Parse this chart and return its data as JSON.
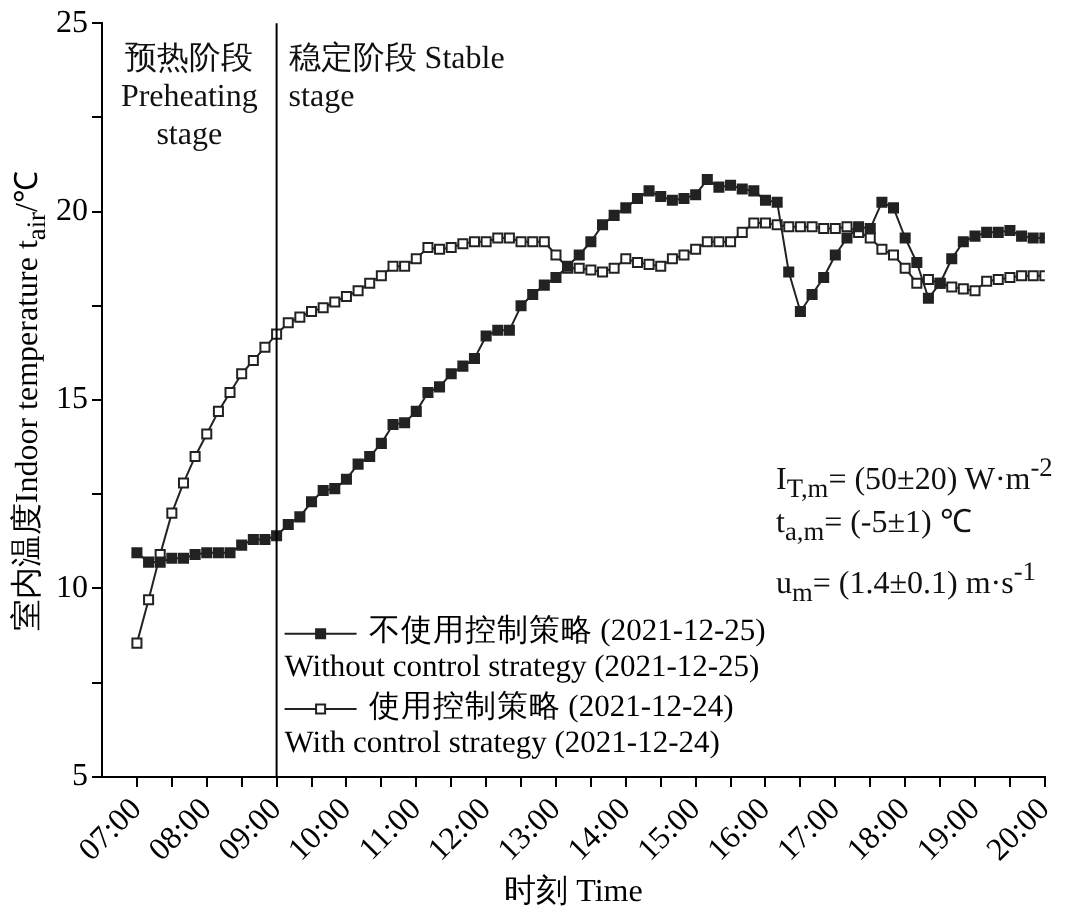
{
  "chart_data": {
    "type": "line",
    "xlabel": "时刻 Time",
    "ylabel": "室内温度Indoor temperature t$_{air}$/℃",
    "x": [
      7,
      7.167,
      7.333,
      7.5,
      7.667,
      7.833,
      8,
      8.167,
      8.333,
      8.5,
      8.667,
      8.833,
      9,
      9.167,
      9.333,
      9.5,
      9.667,
      9.833,
      10,
      10.167,
      10.333,
      10.5,
      10.667,
      10.833,
      11,
      11.167,
      11.333,
      11.5,
      11.667,
      11.833,
      12,
      12.167,
      12.333,
      12.5,
      12.667,
      12.833,
      13,
      13.167,
      13.333,
      13.5,
      13.667,
      13.833,
      14,
      14.167,
      14.333,
      14.5,
      14.667,
      14.833,
      15,
      15.167,
      15.333,
      15.5,
      15.667,
      15.833,
      16,
      16.167,
      16.333,
      16.5,
      16.667,
      16.833,
      17,
      17.167,
      17.333,
      17.5,
      17.667,
      17.833,
      18,
      18.167,
      18.333,
      18.5,
      18.667,
      18.833,
      19,
      19.167,
      19.333,
      19.5,
      19.667,
      19.833,
      20
    ],
    "series": [
      {
        "name": "不使用控制策略 (2021-12-25)\nWithout control strategy (2021-12-25)",
        "color": "#222222",
        "values": [
          10.95,
          10.7,
          10.7,
          10.8,
          10.8,
          10.9,
          10.95,
          10.95,
          10.95,
          11.15,
          11.3,
          11.3,
          11.4,
          11.7,
          11.9,
          12.3,
          12.6,
          12.65,
          12.9,
          13.3,
          13.5,
          13.85,
          14.35,
          14.4,
          14.7,
          15.2,
          15.35,
          15.7,
          15.9,
          16.1,
          16.7,
          16.85,
          16.85,
          17.5,
          17.8,
          18.05,
          18.25,
          18.55,
          18.85,
          19.2,
          19.65,
          19.9,
          20.1,
          20.35,
          20.55,
          20.4,
          20.3,
          20.35,
          20.45,
          20.85,
          20.65,
          20.7,
          20.6,
          20.55,
          20.3,
          20.25,
          18.4,
          17.35,
          17.8,
          18.25,
          18.85,
          19.3,
          19.6,
          19.55,
          20.25,
          20.1,
          19.3,
          18.65,
          17.7,
          18.1,
          18.75,
          19.2,
          19.35,
          19.45,
          19.45,
          19.5,
          19.35,
          19.3,
          19.3
        ]
      },
      {
        "name": "使用控制策略 (2021-12-24)\nWith control strategy (2021-12-24)",
        "color": "#222222",
        "values": [
          8.55,
          9.7,
          10.9,
          12.0,
          12.8,
          13.5,
          14.1,
          14.7,
          15.2,
          15.7,
          16.05,
          16.4,
          16.75,
          17.05,
          17.2,
          17.35,
          17.45,
          17.6,
          17.75,
          17.9,
          18.1,
          18.3,
          18.55,
          18.55,
          18.75,
          19.05,
          19.0,
          19.05,
          19.15,
          19.2,
          19.2,
          19.3,
          19.3,
          19.2,
          19.2,
          19.2,
          18.85,
          18.5,
          18.5,
          18.45,
          18.4,
          18.5,
          18.75,
          18.65,
          18.6,
          18.55,
          18.75,
          18.85,
          19.0,
          19.2,
          19.2,
          19.2,
          19.45,
          19.7,
          19.7,
          19.65,
          19.6,
          19.6,
          19.6,
          19.55,
          19.55,
          19.6,
          19.45,
          19.3,
          19.0,
          18.85,
          18.5,
          18.1,
          18.2,
          18.1,
          18.0,
          17.95,
          17.9,
          18.15,
          18.2,
          18.25,
          18.3,
          18.3,
          18.3
        ]
      }
    ],
    "xlim": [
      6.5,
      20
    ],
    "xticks": [
      {
        "value": 7,
        "label": "07:00"
      },
      {
        "value": 7.5,
        "label": null
      },
      {
        "value": 8,
        "label": "08:00"
      },
      {
        "value": 8.5,
        "label": null
      },
      {
        "value": 9,
        "label": "09:00"
      },
      {
        "value": 9.5,
        "label": null
      },
      {
        "value": 10,
        "label": "10:00"
      },
      {
        "value": 10.5,
        "label": null
      },
      {
        "value": 11,
        "label": "11:00"
      },
      {
        "value": 11.5,
        "label": null
      },
      {
        "value": 12,
        "label": "12:00"
      },
      {
        "value": 12.5,
        "label": null
      },
      {
        "value": 13,
        "label": "13:00"
      },
      {
        "value": 13.5,
        "label": null
      },
      {
        "value": 14,
        "label": "14:00"
      },
      {
        "value": 14.5,
        "label": null
      },
      {
        "value": 15,
        "label": "15:00"
      },
      {
        "value": 15.5,
        "label": null
      },
      {
        "value": 16,
        "label": "16:00"
      },
      {
        "value": 16.5,
        "label": null
      },
      {
        "value": 17,
        "label": "17:00"
      },
      {
        "value": 17.5,
        "label": null
      },
      {
        "value": 18,
        "label": "18:00"
      },
      {
        "value": 18.5,
        "label": null
      },
      {
        "value": 19,
        "label": "19:00"
      },
      {
        "value": 19.5,
        "label": null
      },
      {
        "value": 20,
        "label": "20:00"
      }
    ],
    "ylim": [
      5,
      25
    ],
    "yticks": [
      5,
      {
        "value": 7.5,
        "label": null
      },
      10,
      {
        "value": 12.5,
        "label": null
      },
      15,
      {
        "value": 17.5,
        "label": null
      },
      20,
      {
        "value": 22.5,
        "label": null
      },
      25
    ],
    "ref_lines": [
      {
        "axis": "x",
        "value": 9,
        "color": "#000000"
      }
    ],
    "annotations": [
      "预热阶段 Preheating stage",
      "稳定阶段 Stable stage",
      "I$_{T,m}$= (50±20) W·m$^{-2}$",
      "t$_{a,m}$= (-5±1) ℃",
      "u$_{m}$= (1.4±0.1) m·s$^{-1}$"
    ],
    "grid": false,
    "legend": "bottom left",
    "marker": "square",
    "line_style": "solid"
  }
}
